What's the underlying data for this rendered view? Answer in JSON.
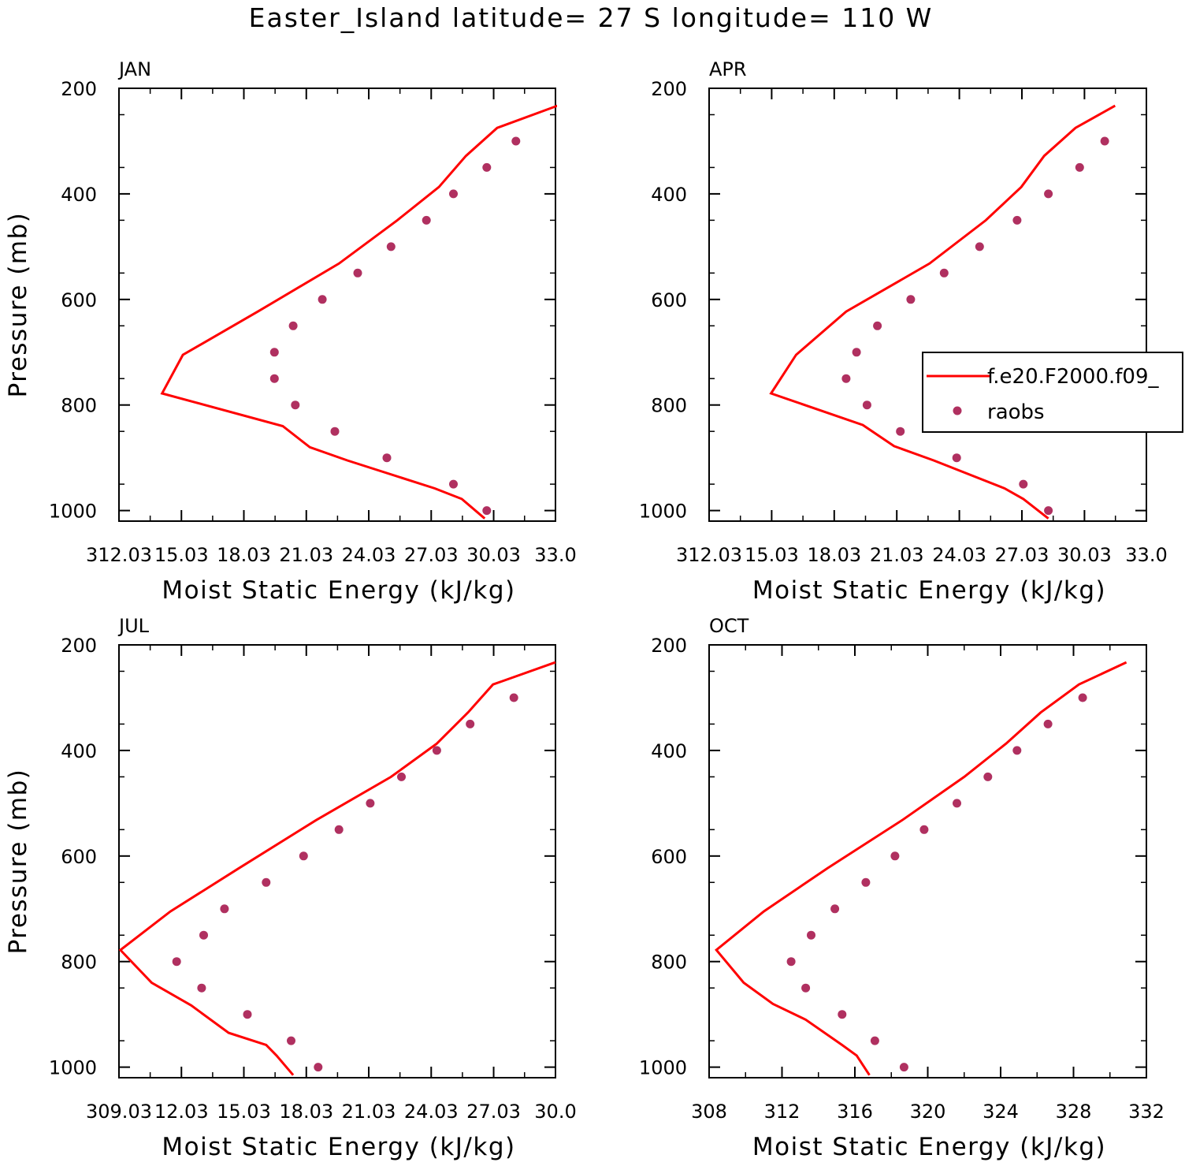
{
  "title": "Easter_Island  latitude= 27 S longitude= 110 W",
  "legend": {
    "line_label": "f.e20.F2000.f09_",
    "dots_label": "raobs"
  },
  "colors": {
    "model": "#ff0000",
    "raobs": "#b03060",
    "axes": "#000000",
    "background": "#ffffff"
  },
  "chart_data": [
    {
      "type": "line",
      "panel": "JAN",
      "xlabel": "Moist Static Energy (kJ/kg)",
      "ylabel": "Pressure (mb)",
      "xlim": [
        312.03,
        333.0
      ],
      "ylim": [
        1000,
        200
      ],
      "y_reversed": true,
      "x_ticks": [
        "312.03",
        "15.03",
        "18.03",
        "21.03",
        "24.03",
        "27.03",
        "30.03",
        "33.0"
      ],
      "x_tick_values": [
        312.03,
        315.03,
        318.03,
        321.03,
        324.03,
        327.03,
        330.03,
        333.0
      ],
      "y_ticks": [
        "200",
        "400",
        "600",
        "800",
        "1000"
      ],
      "y_tick_values": [
        200,
        400,
        600,
        800,
        1000
      ],
      "series": [
        {
          "name": "f.e20.F2000.f09_",
          "style": "line",
          "x": [
            333.1,
            330.2,
            328.7,
            327.4,
            325.4,
            322.6,
            318.7,
            315.1,
            314.1,
            319.9,
            321.2,
            323.0,
            327.2,
            328.5,
            329.6
          ],
          "y": [
            233,
            275,
            328,
            387,
            450,
            532,
            623,
            705,
            778,
            840,
            880,
            905,
            958,
            978,
            1015
          ]
        },
        {
          "name": "raobs",
          "style": "markers",
          "x": [
            331.1,
            329.7,
            328.1,
            326.8,
            325.1,
            323.5,
            321.8,
            320.4,
            319.5,
            319.5,
            320.5,
            322.4,
            324.9,
            328.1,
            329.7
          ],
          "y": [
            300,
            350,
            400,
            450,
            500,
            550,
            600,
            650,
            700,
            750,
            800,
            850,
            900,
            950,
            1000
          ]
        }
      ]
    },
    {
      "type": "line",
      "panel": "APR",
      "xlabel": "Moist Static Energy (kJ/kg)",
      "ylabel": "",
      "xlim": [
        312.03,
        333.0
      ],
      "ylim": [
        1000,
        200
      ],
      "y_reversed": true,
      "x_ticks": [
        "312.03",
        "15.03",
        "18.03",
        "21.03",
        "24.03",
        "27.03",
        "30.03",
        "33.0"
      ],
      "x_tick_values": [
        312.03,
        315.03,
        318.03,
        321.03,
        324.03,
        327.03,
        330.03,
        333.0
      ],
      "y_ticks": [
        "200",
        "400",
        "600",
        "800",
        "1000"
      ],
      "y_tick_values": [
        200,
        400,
        600,
        800,
        1000
      ],
      "series": [
        {
          "name": "f.e20.F2000.f09_",
          "style": "line",
          "x": [
            331.5,
            329.6,
            328.1,
            327.0,
            325.3,
            322.6,
            318.6,
            316.2,
            315.0,
            319.4,
            320.9,
            322.8,
            326.2,
            327.1,
            328.3
          ],
          "y": [
            233,
            275,
            328,
            387,
            450,
            532,
            623,
            705,
            778,
            838,
            878,
            905,
            958,
            978,
            1015
          ]
        },
        {
          "name": "raobs",
          "style": "markers",
          "x": [
            331.0,
            329.8,
            328.3,
            326.8,
            325.0,
            323.3,
            321.7,
            320.1,
            319.1,
            318.6,
            319.6,
            321.2,
            323.9,
            327.1,
            328.3
          ],
          "y": [
            300,
            350,
            400,
            450,
            500,
            550,
            600,
            650,
            700,
            750,
            800,
            850,
            900,
            950,
            1000
          ]
        }
      ]
    },
    {
      "type": "line",
      "panel": "JUL",
      "xlabel": "Moist Static Energy (kJ/kg)",
      "ylabel": "Pressure (mb)",
      "xlim": [
        309.03,
        330.0
      ],
      "ylim": [
        1000,
        200
      ],
      "y_reversed": true,
      "x_ticks": [
        "309.03",
        "12.03",
        "15.03",
        "18.03",
        "21.03",
        "24.03",
        "27.03",
        "30.0"
      ],
      "x_tick_values": [
        309.03,
        312.03,
        315.03,
        318.03,
        321.03,
        324.03,
        327.03,
        330.0
      ],
      "y_ticks": [
        "200",
        "400",
        "600",
        "800",
        "1000"
      ],
      "y_tick_values": [
        200,
        400,
        600,
        800,
        1000
      ],
      "series": [
        {
          "name": "f.e20.F2000.f09_",
          "style": "line",
          "x": [
            330.0,
            327.0,
            325.8,
            324.3,
            322.1,
            318.5,
            314.8,
            311.5,
            309.1,
            310.6,
            312.5,
            314.3,
            316.1,
            316.6,
            317.4
          ],
          "y": [
            233,
            275,
            328,
            387,
            450,
            532,
            623,
            705,
            778,
            840,
            883,
            935,
            958,
            978,
            1015
          ]
        },
        {
          "name": "raobs",
          "style": "markers",
          "x": [
            328.0,
            325.9,
            324.3,
            322.6,
            321.1,
            319.6,
            317.9,
            316.1,
            314.1,
            313.1,
            311.8,
            313.0,
            315.2,
            317.3,
            318.6
          ],
          "y": [
            300,
            350,
            400,
            450,
            500,
            550,
            600,
            650,
            700,
            750,
            800,
            850,
            900,
            950,
            1000
          ]
        }
      ]
    },
    {
      "type": "line",
      "panel": "OCT",
      "xlabel": "Moist Static Energy (kJ/kg)",
      "ylabel": "",
      "xlim": [
        308,
        332
      ],
      "ylim": [
        1000,
        200
      ],
      "y_reversed": true,
      "x_ticks": [
        "308",
        "312",
        "316",
        "320",
        "324",
        "328",
        "332"
      ],
      "x_tick_values": [
        308,
        312,
        316,
        320,
        324,
        328,
        332
      ],
      "y_ticks": [
        "200",
        "400",
        "600",
        "800",
        "1000"
      ],
      "y_tick_values": [
        200,
        400,
        600,
        800,
        1000
      ],
      "series": [
        {
          "name": "f.e20.F2000.f09_",
          "style": "line",
          "x": [
            330.9,
            328.3,
            326.2,
            324.3,
            322.0,
            318.6,
            314.5,
            311.0,
            308.4,
            309.9,
            311.5,
            313.3,
            315.3,
            316.1,
            316.8
          ],
          "y": [
            233,
            275,
            328,
            387,
            450,
            532,
            623,
            705,
            778,
            840,
            880,
            910,
            958,
            978,
            1015
          ]
        },
        {
          "name": "raobs",
          "style": "markers",
          "x": [
            328.5,
            326.6,
            324.9,
            323.3,
            321.6,
            319.8,
            318.2,
            316.6,
            314.9,
            313.6,
            312.5,
            313.3,
            315.3,
            317.1,
            318.7
          ],
          "y": [
            300,
            350,
            400,
            450,
            500,
            550,
            600,
            650,
            700,
            750,
            800,
            850,
            900,
            950,
            1000
          ]
        }
      ]
    }
  ]
}
